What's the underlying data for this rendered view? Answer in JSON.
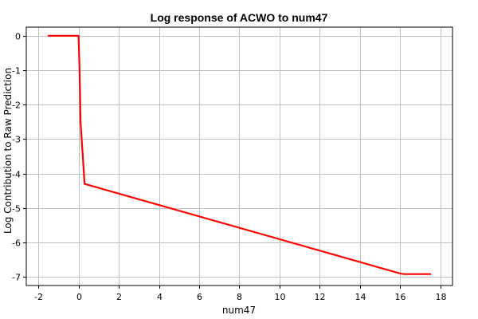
{
  "chart_data": {
    "type": "line",
    "title": "Log response of ACWO to num47",
    "xlabel": "num47",
    "ylabel": "Log Contribution to Raw Prediction",
    "xlim": [
      -2.6,
      18.6
    ],
    "ylim": [
      -7.25,
      0.25
    ],
    "xticks": [
      -2,
      0,
      2,
      4,
      6,
      8,
      10,
      12,
      14,
      16,
      18
    ],
    "yticks": [
      0,
      -1,
      -2,
      -3,
      -4,
      -5,
      -6,
      -7
    ],
    "grid": true,
    "series": [
      {
        "color": "#ff0000",
        "x": [
          -1.5,
          -0.5,
          0.0,
          0.05,
          0.1,
          0.3,
          16.0,
          16.2,
          17.5
        ],
        "y": [
          0.0,
          0.0,
          0.0,
          -1.0,
          -2.5,
          -4.3,
          -6.9,
          -6.92,
          -6.92
        ]
      }
    ]
  }
}
